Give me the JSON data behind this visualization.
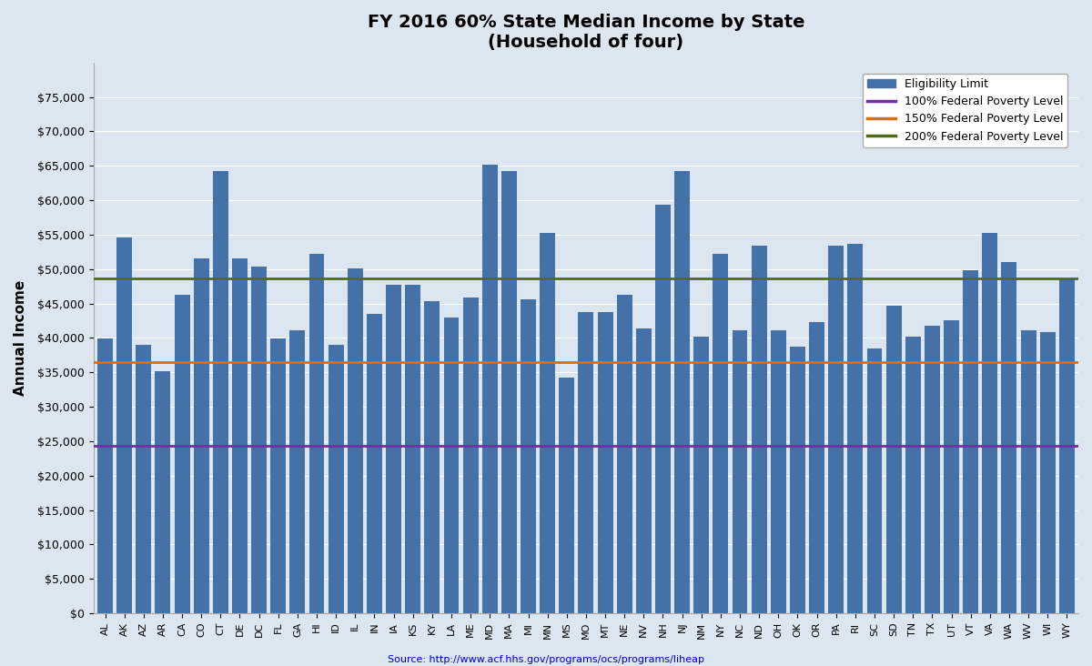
{
  "title": "FY 2016 60% State Median Income by State",
  "subtitle": "(Household of four)",
  "ylabel": "Annual Income",
  "source": "Source: http://www.acf.hhs.gov/programs/ocs/programs/liheap",
  "bar_color": "#4472a8",
  "poverty_100_value": 24300,
  "poverty_150_value": 36450,
  "poverty_200_value": 48600,
  "poverty_100_color": "#7030a0",
  "poverty_150_color": "#e36c09",
  "poverty_200_color": "#4e6b20",
  "bg_color": "#dce6f1",
  "fig_bg_color": "#dce6f1",
  "ylim": [
    0,
    80000
  ],
  "yticks": [
    0,
    5000,
    10000,
    15000,
    20000,
    25000,
    30000,
    35000,
    40000,
    45000,
    50000,
    55000,
    60000,
    65000,
    70000,
    75000
  ],
  "states": [
    "AL",
    "AK",
    "AZ",
    "AR",
    "CA",
    "CO",
    "CT",
    "DE",
    "DC",
    "FL",
    "GA",
    "HI",
    "ID",
    "IL",
    "IN",
    "IA",
    "KS",
    "KY",
    "LA",
    "ME",
    "MD",
    "MA",
    "MI",
    "MN",
    "MS",
    "MO",
    "MT",
    "NE",
    "NV",
    "NH",
    "NJ",
    "NM",
    "NY",
    "NC",
    "ND",
    "OH",
    "OK",
    "OR",
    "PA",
    "RI",
    "SC",
    "SD",
    "TN",
    "TX",
    "UT",
    "VT",
    "VA",
    "WA",
    "WV",
    "WI",
    "WY"
  ],
  "values": [
    39900,
    54600,
    39000,
    35100,
    46200,
    51600,
    64200,
    51600,
    50400,
    39900,
    41100,
    52200,
    39000,
    50100,
    43500,
    47700,
    47700,
    45300,
    42900,
    45900,
    65100,
    64200,
    45600,
    55200,
    34200,
    43800,
    43800,
    46200,
    41400,
    59400,
    64200,
    40200,
    52200,
    41100,
    53400,
    41100,
    38700,
    42300,
    53400,
    53700,
    38400,
    44700,
    40200,
    41700,
    42600,
    49800,
    55200,
    51000,
    41100,
    40800,
    48600
  ]
}
